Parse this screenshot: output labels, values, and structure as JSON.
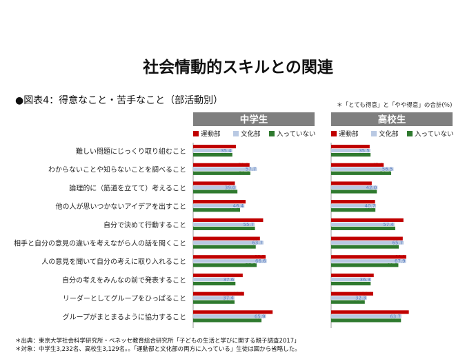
{
  "title": "社会情動的スキルとの関連",
  "subtitle": "●図表4：得意なこと・苦手なこと（部活動別）",
  "note": "＊「とても得意」と「やや得意」の合計(％)",
  "footer": {
    "source": "＊出典：東京大学社会科学研究所・ベネッセ教育総合研究所「子どもの生活と学びに関する親子調査2017」",
    "target": "＊対象：中学生3,232名、高校生3,129名。。「運動部と文化部の両方に入っている」生徒は図から省略した。"
  },
  "chart_data": {
    "type": "bar",
    "orientation": "horizontal",
    "xlim": [
      0,
      100
    ],
    "categories": [
      "難しい問題にじっくり取り組むこと",
      "わからないことや知らないことを調べること",
      "論理的に（筋道を立てて）考えること",
      "他の人が思いつかないアイデアを出すこと",
      "自分で決めて行動すること",
      "相手と自分の意見の違いを考えながら人の話を聞くこと",
      "人の意見を聞いて自分の考えに取り入れること",
      "自分の考えをみんなの前で発表すること",
      "リーダーとしてグループをひっぱること",
      "グループがまとまるように協力すること"
    ],
    "legend": [
      "運動部",
      "文化部",
      "入っていない"
    ],
    "colors": [
      "#c00000",
      "#b9c9e3",
      "#2f7a2f"
    ],
    "label_colors": [
      "#c00000",
      "#5b7fc1",
      "#2f7a2f"
    ],
    "panels": [
      {
        "name": "中学生",
        "series": [
          {
            "name": "運動部",
            "values": [
              38.7,
              51.1,
              37.8,
              47.5,
              63.4,
              60.5,
              65.7,
              44.9,
              46.1,
              72.0
            ]
          },
          {
            "name": "文化部",
            "values": [
              35.4,
              57.7,
              39.0,
              46.4,
              55.7,
              63.7,
              66.6,
              37.6,
              37.4,
              65.9
            ]
          },
          {
            "name": "入っていない",
            "values": [
              35.5,
              51.8,
              40.1,
              42.5,
              56.0,
              56.7,
              57.5,
              38.3,
              37.5,
              61.9
            ]
          }
        ]
      },
      {
        "name": "高校生",
        "series": [
          {
            "name": "運動部",
            "values": [
              34.9,
              47.6,
              36.8,
              39.8,
              65.5,
              64.9,
              68.1,
              38.6,
              38.1,
              70.4
            ]
          },
          {
            "name": "文化部",
            "values": [
              35.5,
              56.5,
              42.0,
              40.7,
              57.4,
              65.7,
              67.9,
              36.3,
              32.3,
              63.7
            ]
          },
          {
            "name": "入っていない",
            "values": [
              35.7,
              54.4,
              41.4,
              40.1,
              58.1,
              61.3,
              60.9,
              35.8,
              30.5,
              63.3
            ]
          }
        ]
      }
    ]
  }
}
